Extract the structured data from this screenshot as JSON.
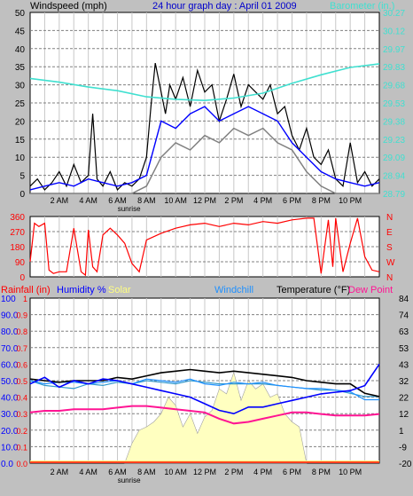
{
  "title": "24 hour graph day : April 01 2009",
  "colors": {
    "bg": "#c0c0c0",
    "plot": "#ffffff",
    "grid": "#808080",
    "windspeed": "#000000",
    "gust_avg": "#0000ff",
    "wind_gray": "#808080",
    "barometer": "#40e0d0",
    "winddir": "#ff0000",
    "rain": "#ff0000",
    "humidity": "#0000ff",
    "solar": "#ffffc0",
    "windchill": "#1e90ff",
    "temperature": "#000000",
    "dewpoint": "#ff1493",
    "temp_light": "#3399cc"
  },
  "chart_data": [
    {
      "type": "line",
      "id": "wind-panel",
      "labels": {
        "windspeed": "Windspeed (mph)",
        "barometer": "Barometer (in.)"
      },
      "xticks": [
        "2 AM",
        "4 AM",
        "6 AM",
        "8 AM",
        "10 AM",
        "12 PM",
        "2 PM",
        "4 PM",
        "6 PM",
        "8 PM",
        "10 PM"
      ],
      "sunrise_label": "sunrise",
      "y_left": {
        "min": 0,
        "max": 50,
        "ticks": [
          "0",
          "5",
          "10",
          "15",
          "20",
          "25",
          "30",
          "35",
          "40",
          "45",
          "50"
        ]
      },
      "y_right": {
        "min": 28.79,
        "max": 30.27,
        "ticks": [
          "28.79",
          "28.94",
          "29.09",
          "29.23",
          "29.38",
          "29.53",
          "29.68",
          "29.83",
          "29.97",
          "30.12",
          "30.27"
        ]
      },
      "series": [
        {
          "key": "windspeed",
          "hours": [
            0,
            0.5,
            1,
            1.5,
            2,
            2.5,
            3,
            3.5,
            4,
            4.3,
            4.6,
            5,
            5.5,
            6,
            6.5,
            7,
            7.5,
            8,
            8.3,
            8.6,
            9,
            9.3,
            9.6,
            10,
            10.5,
            11,
            11.5,
            12,
            12.5,
            13,
            13.5,
            14,
            14.5,
            15,
            15.5,
            16,
            16.5,
            17,
            17.5,
            18,
            18.5,
            19,
            19.5,
            20,
            20.5,
            21,
            21.5,
            22,
            22.5,
            23,
            23.5,
            24
          ],
          "values": [
            2,
            4,
            1,
            3,
            6,
            2,
            8,
            3,
            5,
            22,
            4,
            2,
            6,
            1,
            3,
            2,
            4,
            10,
            24,
            36,
            28,
            22,
            30,
            26,
            32,
            24,
            34,
            28,
            30,
            20,
            26,
            33,
            24,
            30,
            28,
            26,
            30,
            22,
            24,
            16,
            12,
            18,
            10,
            8,
            12,
            4,
            2,
            14,
            3,
            6,
            2,
            4
          ]
        },
        {
          "key": "gust_avg",
          "hours": [
            0,
            1,
            2,
            3,
            4,
            5,
            6,
            7,
            8,
            9,
            10,
            11,
            12,
            13,
            14,
            15,
            16,
            17,
            18,
            19,
            20,
            21,
            22,
            23,
            24
          ],
          "values": [
            1,
            2,
            3,
            2,
            4,
            3,
            2,
            3,
            5,
            20,
            18,
            22,
            24,
            20,
            22,
            24,
            22,
            20,
            14,
            10,
            6,
            4,
            3,
            2,
            3
          ]
        },
        {
          "key": "wind_gray",
          "hours": [
            0,
            2,
            4,
            6,
            7,
            8,
            9,
            10,
            11,
            12,
            13,
            14,
            15,
            16,
            17,
            18,
            19,
            20,
            21,
            22,
            24
          ],
          "values": [
            0,
            0,
            0,
            0,
            0,
            2,
            10,
            14,
            12,
            16,
            14,
            18,
            16,
            18,
            14,
            12,
            6,
            2,
            0,
            0,
            0
          ]
        },
        {
          "key": "barometer",
          "hours": [
            0,
            2,
            4,
            6,
            8,
            10,
            12,
            14,
            16,
            18,
            20,
            22,
            24
          ],
          "values": [
            29.73,
            29.7,
            29.66,
            29.63,
            29.58,
            29.56,
            29.55,
            29.57,
            29.61,
            29.69,
            29.76,
            29.82,
            29.85
          ]
        }
      ]
    },
    {
      "type": "line",
      "id": "direction-panel",
      "y_left": {
        "min": 0,
        "max": 360,
        "ticks": [
          "0",
          "90",
          "180",
          "270",
          "360"
        ]
      },
      "y_right_labels": [
        "N",
        "E",
        "S",
        "W",
        "N"
      ],
      "series": [
        {
          "key": "winddir",
          "hours": [
            0,
            0.3,
            0.6,
            1,
            1.3,
            1.6,
            2,
            2.5,
            3,
            3.5,
            3.8,
            4,
            4.3,
            4.6,
            5,
            5.5,
            6,
            6.5,
            7,
            7.5,
            8,
            9,
            10,
            11,
            12,
            13,
            14,
            15,
            16,
            17,
            18,
            19,
            19.5,
            20,
            20.5,
            20.8,
            21,
            21.5,
            22,
            22.5,
            23,
            23.5,
            24
          ],
          "values": [
            90,
            320,
            300,
            320,
            40,
            20,
            30,
            30,
            290,
            30,
            10,
            280,
            60,
            30,
            250,
            290,
            250,
            200,
            80,
            30,
            220,
            260,
            290,
            310,
            320,
            300,
            320,
            310,
            330,
            320,
            340,
            350,
            350,
            20,
            340,
            60,
            350,
            30,
            200,
            350,
            120,
            40,
            30
          ]
        }
      ]
    },
    {
      "type": "line",
      "id": "temperature-panel",
      "labels": {
        "rain": "Rainfall (in)",
        "humidity": "Humidity %",
        "solar": "Solar",
        "windchill": "Windchill",
        "temperature": "Temperature (°F)",
        "dewpoint": "Dew Point"
      },
      "y_humidity": {
        "min": 0,
        "max": 100,
        "ticks": [
          "0.0",
          "10.0",
          "20.0",
          "30.0",
          "40.0",
          "50.0",
          "60.0",
          "70.0",
          "80.0",
          "90.0",
          "100"
        ]
      },
      "y_rain": {
        "ticks": [
          "0.0",
          "0.1",
          "0.2",
          "0.3",
          "0.4",
          "0.5",
          "0.6",
          "0.7",
          "0.8",
          "0.9",
          "1"
        ]
      },
      "y_right": {
        "min": -20,
        "max": 84,
        "ticks": [
          "-20",
          "-9",
          "1",
          "12",
          "22",
          "32",
          "43",
          "53",
          "63",
          "74",
          "84"
        ]
      },
      "series": [
        {
          "key": "solar",
          "hours": [
            6.5,
            7,
            7.5,
            8,
            8.5,
            9,
            9.5,
            10,
            10.5,
            11,
            11.5,
            12,
            12.5,
            13,
            13.5,
            14,
            14.5,
            15,
            15.5,
            16,
            16.5,
            17,
            17.5,
            18,
            18.5,
            19
          ],
          "values": [
            0,
            12,
            20,
            22,
            25,
            30,
            40,
            35,
            22,
            30,
            18,
            28,
            32,
            45,
            42,
            55,
            38,
            50,
            45,
            48,
            40,
            42,
            30,
            25,
            22,
            0
          ]
        },
        {
          "key": "temperature",
          "hours": [
            0,
            1,
            2,
            3,
            4,
            5,
            6,
            7,
            8,
            9,
            10,
            11,
            12,
            13,
            14,
            15,
            16,
            17,
            18,
            19,
            20,
            21,
            22,
            23,
            24
          ],
          "values": [
            33,
            32,
            31,
            32,
            32,
            32,
            34,
            33,
            35,
            37,
            38,
            39,
            38,
            37,
            38,
            37,
            36,
            35,
            34,
            32,
            31,
            30,
            30,
            24,
            22
          ]
        },
        {
          "key": "windchill",
          "hours": [
            0,
            1,
            2,
            3,
            4,
            5,
            6,
            7,
            8,
            9,
            10,
            11,
            12,
            13,
            14,
            15,
            16,
            17,
            18,
            19,
            20,
            21,
            22,
            23,
            24
          ],
          "values": [
            32,
            30,
            31,
            31,
            30,
            31,
            32,
            30,
            33,
            32,
            31,
            33,
            30,
            29,
            31,
            30,
            31,
            29,
            28,
            27,
            27,
            26,
            25,
            20,
            20
          ]
        },
        {
          "key": "temp_light",
          "hours": [
            0,
            1,
            2,
            3,
            4,
            5,
            6,
            7,
            8,
            9,
            10,
            11,
            12,
            13,
            14,
            15,
            16,
            17,
            18,
            19,
            20,
            21,
            22,
            23,
            24
          ],
          "values": [
            32,
            29,
            28,
            27,
            30,
            29,
            31,
            30,
            32,
            31,
            30,
            32,
            31,
            30,
            30,
            30,
            30,
            29,
            28,
            27,
            26,
            26,
            24,
            22,
            22
          ]
        },
        {
          "key": "humidity",
          "hours": [
            0,
            1,
            2,
            3,
            4,
            5,
            6,
            7,
            8,
            9,
            10,
            11,
            12,
            13,
            14,
            15,
            16,
            17,
            18,
            19,
            20,
            21,
            22,
            23,
            24
          ],
          "values": [
            48,
            52,
            46,
            50,
            48,
            51,
            50,
            48,
            46,
            44,
            42,
            40,
            36,
            32,
            30,
            34,
            34,
            36,
            38,
            40,
            42,
            43,
            44,
            47,
            60
          ]
        },
        {
          "key": "dewpoint",
          "hours": [
            0,
            1,
            2,
            3,
            4,
            5,
            6,
            7,
            8,
            9,
            10,
            11,
            12,
            13,
            14,
            15,
            16,
            17,
            18,
            19,
            20,
            21,
            22,
            23,
            24
          ],
          "values": [
            12,
            13,
            13,
            14,
            14,
            14,
            15,
            16,
            16,
            15,
            14,
            13,
            12,
            8,
            5,
            6,
            8,
            10,
            12,
            12,
            11,
            10,
            10,
            10,
            11
          ]
        },
        {
          "key": "rain",
          "hours": [
            0,
            24
          ],
          "values": [
            0,
            0
          ]
        }
      ]
    }
  ]
}
